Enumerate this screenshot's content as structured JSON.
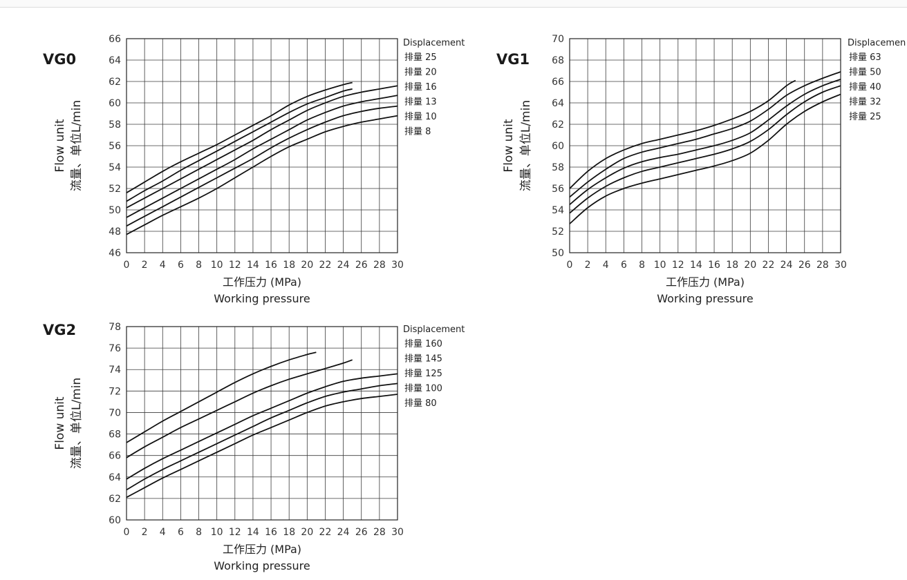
{
  "chart_data": [
    {
      "type": "line",
      "title": "VG0",
      "ylabel_en": "Flow unit",
      "ylabel_cn": "流量、单位L/min",
      "xlabel_cn": "工作压力 (MPa)",
      "xlabel_en": "Working pressure",
      "legend_title": "Displacement",
      "legend_placement": "right",
      "grid": true,
      "xlim": [
        0,
        30
      ],
      "ylim": [
        46,
        66
      ],
      "xticks": [
        0,
        2,
        4,
        6,
        8,
        10,
        12,
        14,
        16,
        18,
        20,
        22,
        24,
        26,
        28,
        30
      ],
      "yticks": [
        46,
        48,
        50,
        52,
        54,
        56,
        58,
        60,
        62,
        64,
        66
      ],
      "series": [
        {
          "name": "排量 25",
          "x": [
            0,
            2,
            4,
            6,
            8,
            10,
            12,
            14,
            16,
            18,
            20,
            22,
            24,
            25
          ],
          "y": [
            51.6,
            52.6,
            53.6,
            54.5,
            55.3,
            56.1,
            57.0,
            57.9,
            58.8,
            59.8,
            60.6,
            61.2,
            61.7,
            61.9
          ]
        },
        {
          "name": "排量 20",
          "x": [
            0,
            2,
            4,
            6,
            8,
            10,
            12,
            14,
            16,
            18,
            20,
            22,
            24,
            25
          ],
          "y": [
            50.8,
            51.8,
            52.7,
            53.7,
            54.6,
            55.5,
            56.4,
            57.3,
            58.2,
            59.1,
            59.9,
            60.5,
            61.1,
            61.3
          ]
        },
        {
          "name": "排量 16",
          "x": [
            0,
            2,
            4,
            6,
            8,
            10,
            12,
            14,
            16,
            18,
            20,
            22,
            24,
            26,
            28,
            30
          ],
          "y": [
            50.2,
            51.1,
            52.0,
            52.9,
            53.8,
            54.7,
            55.6,
            56.5,
            57.5,
            58.4,
            59.3,
            60.0,
            60.6,
            61.0,
            61.3,
            61.6
          ]
        },
        {
          "name": "排量 13",
          "x": [
            0,
            2,
            4,
            6,
            8,
            10,
            12,
            14,
            16,
            18,
            20,
            22,
            24,
            26,
            28,
            30
          ],
          "y": [
            49.3,
            50.2,
            51.1,
            52.0,
            52.9,
            53.8,
            54.7,
            55.7,
            56.6,
            57.5,
            58.4,
            59.1,
            59.7,
            60.1,
            60.4,
            60.7
          ]
        },
        {
          "name": "排量 10",
          "x": [
            0,
            2,
            4,
            6,
            8,
            10,
            12,
            14,
            16,
            18,
            20,
            22,
            24,
            26,
            28,
            30
          ],
          "y": [
            48.5,
            49.4,
            50.3,
            51.2,
            52.1,
            53.0,
            53.9,
            54.8,
            55.8,
            56.7,
            57.5,
            58.2,
            58.8,
            59.2,
            59.5,
            59.7
          ]
        },
        {
          "name": "排量 8",
          "x": [
            0,
            2,
            4,
            6,
            8,
            10,
            12,
            14,
            16,
            18,
            20,
            22,
            24,
            26,
            28,
            30
          ],
          "y": [
            47.7,
            48.6,
            49.5,
            50.3,
            51.1,
            52.0,
            53.0,
            54.0,
            55.0,
            55.9,
            56.6,
            57.3,
            57.8,
            58.2,
            58.5,
            58.8
          ]
        }
      ]
    },
    {
      "type": "line",
      "title": "VG1",
      "ylabel_en": "Flow unit",
      "ylabel_cn": "流量、单位L/min",
      "xlabel_cn": "工作压力 (MPa)",
      "xlabel_en": "Working pressure",
      "legend_title": "Displacemen",
      "legend_placement": "right",
      "grid": true,
      "xlim": [
        0,
        30
      ],
      "ylim": [
        50,
        70
      ],
      "xticks": [
        0,
        2,
        4,
        6,
        8,
        10,
        12,
        14,
        16,
        18,
        20,
        22,
        24,
        26,
        28,
        30
      ],
      "yticks": [
        50,
        52,
        54,
        56,
        58,
        60,
        62,
        64,
        66,
        68,
        70
      ],
      "series": [
        {
          "name": "排量 63",
          "x": [
            0,
            2,
            4,
            6,
            8,
            10,
            12,
            14,
            16,
            18,
            20,
            22,
            24,
            25
          ],
          "y": [
            56.0,
            57.6,
            58.8,
            59.6,
            60.2,
            60.6,
            61.0,
            61.4,
            61.9,
            62.5,
            63.2,
            64.2,
            65.6,
            66.1
          ]
        },
        {
          "name": "排量 50",
          "x": [
            0,
            2,
            4,
            6,
            8,
            10,
            12,
            14,
            16,
            18,
            20,
            22,
            24,
            26,
            28,
            30
          ],
          "y": [
            55.2,
            56.6,
            57.8,
            58.8,
            59.4,
            59.8,
            60.2,
            60.6,
            61.1,
            61.6,
            62.3,
            63.4,
            64.7,
            65.6,
            66.3,
            66.9
          ]
        },
        {
          "name": "排量 40",
          "x": [
            0,
            2,
            4,
            6,
            8,
            10,
            12,
            14,
            16,
            18,
            20,
            22,
            24,
            26,
            28,
            30
          ],
          "y": [
            54.5,
            55.9,
            57.0,
            57.9,
            58.5,
            58.9,
            59.2,
            59.6,
            60.0,
            60.5,
            61.2,
            62.4,
            63.7,
            64.8,
            65.6,
            66.2
          ]
        },
        {
          "name": "排量 32",
          "x": [
            0,
            2,
            4,
            6,
            8,
            10,
            12,
            14,
            16,
            18,
            20,
            22,
            24,
            26,
            28,
            30
          ],
          "y": [
            53.7,
            55.1,
            56.2,
            57.0,
            57.6,
            58.0,
            58.4,
            58.8,
            59.2,
            59.7,
            60.4,
            61.5,
            62.9,
            64.1,
            65.0,
            65.6
          ]
        },
        {
          "name": "排量 25",
          "x": [
            0,
            2,
            4,
            6,
            8,
            10,
            12,
            14,
            16,
            18,
            20,
            22,
            24,
            26,
            28,
            30
          ],
          "y": [
            52.7,
            54.2,
            55.3,
            56.0,
            56.5,
            56.9,
            57.3,
            57.7,
            58.1,
            58.6,
            59.3,
            60.5,
            62.0,
            63.2,
            64.1,
            64.8
          ]
        }
      ]
    },
    {
      "type": "line",
      "title": "VG2",
      "ylabel_en": "Flow unit",
      "ylabel_cn": "流量、单位L/min",
      "xlabel_cn": "工作压力 (MPa)",
      "xlabel_en": "Working pressure",
      "legend_title": "Displacement",
      "legend_placement": "right",
      "grid": true,
      "xlim": [
        0,
        30
      ],
      "ylim": [
        60,
        78
      ],
      "xticks": [
        0,
        2,
        4,
        6,
        8,
        10,
        12,
        14,
        16,
        18,
        20,
        22,
        24,
        26,
        28,
        30
      ],
      "yticks": [
        60,
        62,
        64,
        66,
        68,
        70,
        72,
        74,
        76,
        78
      ],
      "series": [
        {
          "name": "排量 160",
          "x": [
            0,
            2,
            4,
            6,
            8,
            10,
            12,
            14,
            16,
            18,
            20,
            21
          ],
          "y": [
            67.2,
            68.2,
            69.2,
            70.1,
            71.0,
            71.9,
            72.8,
            73.6,
            74.3,
            74.9,
            75.4,
            75.6
          ]
        },
        {
          "name": "排量 145",
          "x": [
            0,
            2,
            4,
            6,
            8,
            10,
            12,
            14,
            16,
            18,
            20,
            22,
            24,
            25
          ],
          "y": [
            65.8,
            66.8,
            67.7,
            68.6,
            69.4,
            70.2,
            71.0,
            71.8,
            72.5,
            73.1,
            73.6,
            74.1,
            74.6,
            74.9
          ]
        },
        {
          "name": "排量 125",
          "x": [
            0,
            2,
            4,
            6,
            8,
            10,
            12,
            14,
            16,
            18,
            20,
            22,
            24,
            26,
            28,
            30
          ],
          "y": [
            63.8,
            64.8,
            65.7,
            66.5,
            67.3,
            68.1,
            68.9,
            69.7,
            70.4,
            71.1,
            71.8,
            72.4,
            72.9,
            73.2,
            73.4,
            73.6
          ]
        },
        {
          "name": "排量 100",
          "x": [
            0,
            2,
            4,
            6,
            8,
            10,
            12,
            14,
            16,
            18,
            20,
            22,
            24,
            26,
            28,
            30
          ],
          "y": [
            62.8,
            63.8,
            64.7,
            65.5,
            66.3,
            67.1,
            67.9,
            68.7,
            69.5,
            70.2,
            70.9,
            71.5,
            71.9,
            72.2,
            72.5,
            72.7
          ]
        },
        {
          "name": "排量 80",
          "x": [
            0,
            2,
            4,
            6,
            8,
            10,
            12,
            14,
            16,
            18,
            20,
            22,
            24,
            26,
            28,
            30
          ],
          "y": [
            62.1,
            63.0,
            63.9,
            64.7,
            65.5,
            66.3,
            67.1,
            67.9,
            68.6,
            69.3,
            70.0,
            70.6,
            71.0,
            71.3,
            71.5,
            71.7
          ]
        }
      ]
    }
  ]
}
